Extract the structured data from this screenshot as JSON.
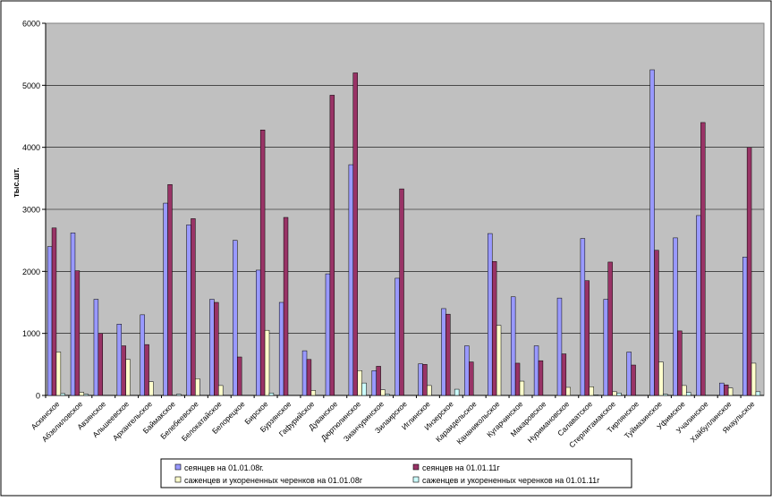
{
  "chart_data": {
    "type": "bar",
    "ylabel": "тыс.шт.",
    "ylim": [
      0,
      6000
    ],
    "yticks": [
      0,
      1000,
      2000,
      3000,
      4000,
      5000,
      6000
    ],
    "grid": "horizontal",
    "plot_background": "#c0c0c0",
    "legend_position": "bottom",
    "categories": [
      "Аскинское",
      "Абзелиловское",
      "Авзянское",
      "Альшеевское",
      "Архангельское",
      "Баймакское",
      "Белебеевское",
      "Белокатайское",
      "Белорецкое",
      "Бирское",
      "Бурзянское",
      "Гафурийское",
      "Дуванское",
      "Дюртюлинское",
      "Зианчуринское",
      "Зилаирское",
      "Иглинское",
      "Инзерское",
      "Караидельское",
      "Кананикольское",
      "Кугарчинское",
      "Макаровское",
      "Нуримановское",
      "Салаватское",
      "Стерлитамакское",
      "Тирлянское",
      "Туймазинское",
      "Уфимское",
      "Учалинское",
      "Хайбуллинское",
      "Янаульское"
    ],
    "series": [
      {
        "name": "сеянцев на 01.01.08г.",
        "color": "#9999ff",
        "values": [
          2400,
          2620,
          1550,
          1150,
          1300,
          3100,
          2750,
          1550,
          2500,
          2020,
          1500,
          720,
          1960,
          3720,
          400,
          1890,
          510,
          1400,
          800,
          2610,
          1590,
          800,
          1570,
          2530,
          1550,
          700,
          5250,
          2540,
          2900,
          200,
          2230
        ]
      },
      {
        "name": "сеянцев на 01.01.11г",
        "color": "#993366",
        "values": [
          2700,
          2010,
          1000,
          800,
          820,
          3400,
          2850,
          1500,
          620,
          4280,
          2870,
          580,
          4840,
          5200,
          470,
          3330,
          500,
          1310,
          540,
          2160,
          520,
          560,
          670,
          1850,
          2150,
          490,
          2340,
          1040,
          4400,
          170,
          4000
        ]
      },
      {
        "name": "саженцев и укорененных черенков на 01.01.08г",
        "color": "#ffffcc",
        "values": [
          700,
          50,
          0,
          580,
          220,
          0,
          270,
          160,
          0,
          1050,
          0,
          80,
          0,
          400,
          90,
          0,
          160,
          0,
          0,
          1130,
          230,
          0,
          130,
          140,
          60,
          0,
          540,
          160,
          0,
          120,
          520
        ]
      },
      {
        "name": "саженцев и укорененных черенков на 01.01.11г",
        "color": "#ccffff",
        "values": [
          30,
          20,
          0,
          0,
          0,
          20,
          0,
          0,
          0,
          40,
          0,
          0,
          0,
          200,
          20,
          0,
          0,
          100,
          0,
          0,
          0,
          0,
          0,
          10,
          40,
          0,
          20,
          50,
          0,
          0,
          60
        ]
      }
    ]
  }
}
